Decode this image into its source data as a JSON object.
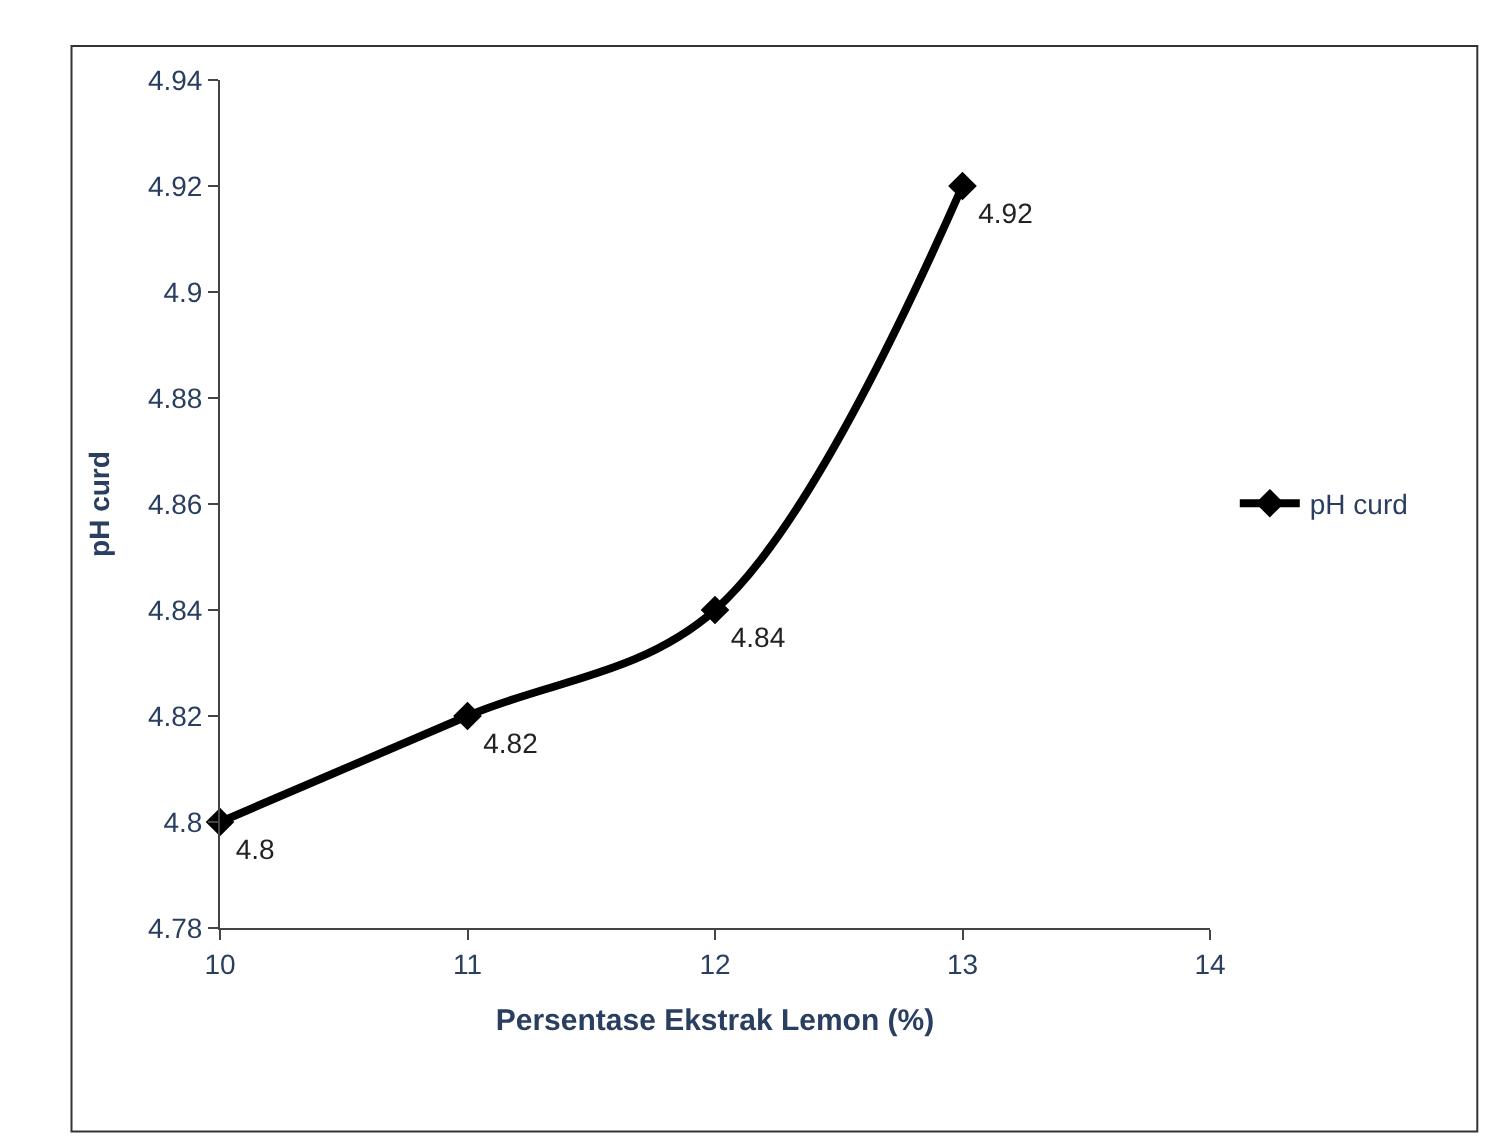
{
  "chart_data": {
    "type": "line",
    "xlabel": "Persentase Ekstrak Lemon (%)",
    "ylabel": "pH curd",
    "x": [
      10,
      11,
      12,
      13
    ],
    "series": [
      {
        "name": "pH curd",
        "color": "#000000",
        "values": [
          4.8,
          4.82,
          4.84,
          4.92
        ]
      }
    ],
    "xlim": [
      10,
      14
    ],
    "xticks": [
      10,
      11,
      12,
      13,
      14
    ],
    "ylim": [
      4.78,
      4.94
    ],
    "yticks": [
      4.78,
      4.8,
      4.82,
      4.84,
      4.86,
      4.88,
      4.9,
      4.92,
      4.94
    ],
    "legend": "right",
    "marker": "diamond",
    "line_style": "solid",
    "data_labels": true
  }
}
